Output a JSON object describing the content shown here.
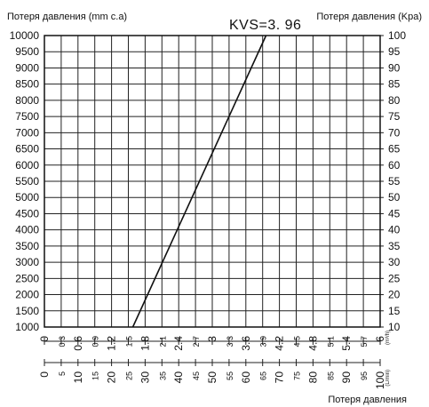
{
  "chart_data": {
    "type": "line",
    "annotation": "KVS=3. 96",
    "y_left": {
      "label": "Потеря давления (mm c.a)",
      "range": [
        1000,
        10000
      ],
      "ticks": [
        1000,
        1500,
        2000,
        2500,
        3000,
        3500,
        4000,
        4500,
        5000,
        5500,
        6000,
        6500,
        7000,
        7500,
        8000,
        8500,
        9000,
        9500,
        10000
      ]
    },
    "y_right": {
      "label": "Потеря давления (Kpa)",
      "range": [
        10,
        100
      ],
      "ticks": [
        10,
        15,
        20,
        25,
        30,
        35,
        40,
        45,
        50,
        55,
        60,
        65,
        70,
        75,
        80,
        85,
        90,
        95,
        100
      ]
    },
    "x_top": {
      "unit": "(m³/h)",
      "range": [
        0,
        6
      ],
      "ticks": [
        "0",
        "0.3",
        "0.6",
        "0.9",
        "1.2",
        "1.5",
        "1.8",
        "2.1",
        "2.4",
        "2.7",
        "3",
        "3.3",
        "3.6",
        "3.9",
        "4.2",
        "4.5",
        "4.8",
        "5.1",
        "5.4",
        "5.7",
        "6"
      ]
    },
    "x_bottom": {
      "unit": "(L/min)",
      "range": [
        0,
        100
      ],
      "ticks": [
        "0",
        "5",
        "10",
        "15",
        "20",
        "25",
        "30",
        "35",
        "40",
        "45",
        "50",
        "55",
        "60",
        "65",
        "70",
        "75",
        "80",
        "85",
        "90",
        "95",
        "100"
      ]
    },
    "x_label": "Потеря давления",
    "grid": true,
    "series": [
      {
        "points": [
          {
            "x": 1.58,
            "y": 1000
          },
          {
            "x": 3.96,
            "y": 10000
          }
        ]
      }
    ]
  }
}
